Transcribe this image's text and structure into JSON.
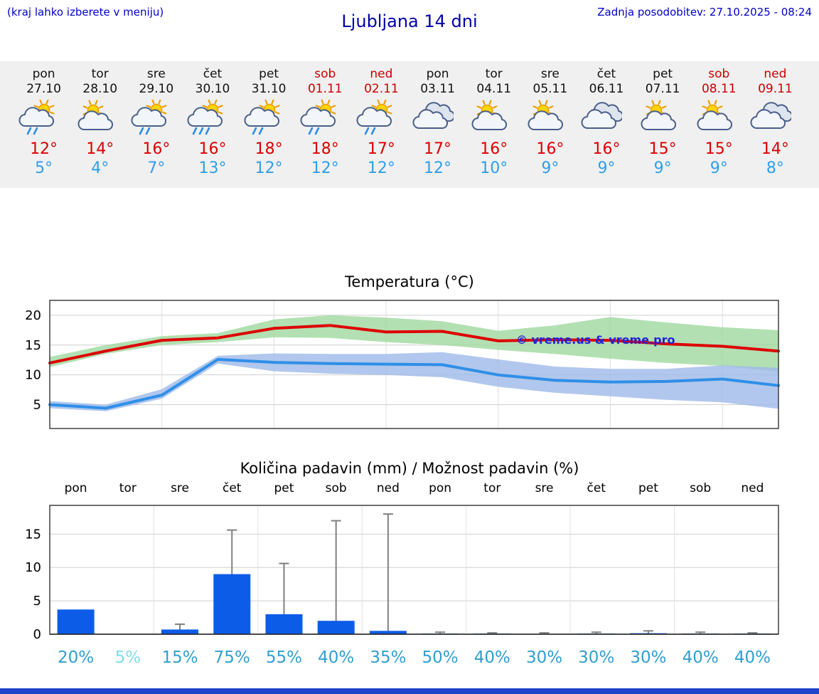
{
  "header": {
    "hint": "(kraj lahko izberete v meniju)",
    "title": "Ljubljana 14 dni",
    "updated": "Zadnja posodobitev: 27.10.2025 - 08:24"
  },
  "colors": {
    "accent_blue": "#0000aa",
    "temp_max": "#dd0000",
    "temp_min": "#2f9fe8",
    "bar_blue": "#0c5ce8",
    "percent": "#2f9fd0",
    "percent_muted": "#7fdde8",
    "strip_bg": "#f0f0f0"
  },
  "forecast": {
    "days": [
      {
        "name": "pon",
        "date": "27.10",
        "weekend": false,
        "icon": "sun-cloud-rain",
        "tmax": "12°",
        "tmin": "5°"
      },
      {
        "name": "tor",
        "date": "28.10",
        "weekend": false,
        "icon": "sun-cloud",
        "tmax": "14°",
        "tmin": "4°"
      },
      {
        "name": "sre",
        "date": "29.10",
        "weekend": false,
        "icon": "sun-cloud-rain",
        "tmax": "16°",
        "tmin": "7°"
      },
      {
        "name": "čet",
        "date": "30.10",
        "weekend": false,
        "icon": "sun-cloud-heavy-rain",
        "tmax": "16°",
        "tmin": "13°"
      },
      {
        "name": "pet",
        "date": "31.10",
        "weekend": false,
        "icon": "sun-cloud-rain",
        "tmax": "18°",
        "tmin": "12°"
      },
      {
        "name": "sob",
        "date": "01.11",
        "weekend": true,
        "icon": "sun-cloud-rain",
        "tmax": "18°",
        "tmin": "12°"
      },
      {
        "name": "ned",
        "date": "02.11",
        "weekend": true,
        "icon": "sun-cloud-rain",
        "tmax": "17°",
        "tmin": "12°"
      },
      {
        "name": "pon",
        "date": "03.11",
        "weekend": false,
        "icon": "cloudy",
        "tmax": "17°",
        "tmin": "12°"
      },
      {
        "name": "tor",
        "date": "04.11",
        "weekend": false,
        "icon": "sun-cloud",
        "tmax": "16°",
        "tmin": "10°"
      },
      {
        "name": "sre",
        "date": "05.11",
        "weekend": false,
        "icon": "sun-cloud",
        "tmax": "16°",
        "tmin": "9°"
      },
      {
        "name": "čet",
        "date": "06.11",
        "weekend": false,
        "icon": "cloudy",
        "tmax": "16°",
        "tmin": "9°"
      },
      {
        "name": "pet",
        "date": "07.11",
        "weekend": false,
        "icon": "sun-cloud",
        "tmax": "15°",
        "tmin": "9°"
      },
      {
        "name": "sob",
        "date": "08.11",
        "weekend": true,
        "icon": "sun-cloud",
        "tmax": "15°",
        "tmin": "9°"
      },
      {
        "name": "ned",
        "date": "09.11",
        "weekend": true,
        "icon": "cloudy",
        "tmax": "14°",
        "tmin": "8°"
      }
    ]
  },
  "chart_data": [
    {
      "type": "line",
      "title": "Temperatura (°C)",
      "x": [
        "pon",
        "tor",
        "sre",
        "čet",
        "pet",
        "sob",
        "ned",
        "pon",
        "tor",
        "sre",
        "čet",
        "pet",
        "sob",
        "ned"
      ],
      "ylim": [
        1,
        22.5
      ],
      "yticks": [
        5,
        10,
        15,
        20
      ],
      "grid": true,
      "watermark": "© vreme.us & vreme.pro",
      "series": [
        {
          "name": "max temperature",
          "color": "#dd0000",
          "band_color": "#9fd89f",
          "values": [
            12,
            14,
            15.8,
            16.2,
            17.8,
            18.3,
            17.2,
            17.3,
            15.7,
            15.9,
            15.8,
            15.2,
            14.8,
            14
          ],
          "band_upper": [
            13,
            15,
            16.5,
            17,
            19.3,
            20,
            19.6,
            19,
            17.4,
            18.3,
            19.7,
            18.8,
            18,
            17.5
          ],
          "band_lower": [
            11.3,
            13.5,
            15,
            15.5,
            16.3,
            16.2,
            15.5,
            15,
            14.2,
            13.5,
            12.7,
            12,
            11.5,
            10.5
          ]
        },
        {
          "name": "min temperature",
          "color": "#2f8fe8",
          "band_color": "#9fb9e8",
          "values": [
            5,
            4.4,
            6.6,
            12.6,
            12.1,
            11.9,
            11.8,
            11.7,
            10,
            9.1,
            8.8,
            8.9,
            9.3,
            8.2
          ],
          "band_upper": [
            5.6,
            5,
            7.6,
            13.2,
            13.6,
            13.5,
            13.5,
            13.8,
            12.6,
            11.4,
            11,
            11,
            11.6,
            11.2
          ],
          "band_lower": [
            4.4,
            3.9,
            6,
            11.9,
            10.6,
            10.2,
            10,
            9.6,
            8,
            7,
            6.4,
            5.8,
            5.4,
            4.3
          ]
        }
      ]
    },
    {
      "type": "bar",
      "title": "Količina padavin (mm) / Možnost padavin (%)",
      "categories": [
        "pon",
        "tor",
        "sre",
        "čet",
        "pet",
        "sob",
        "ned",
        "pon",
        "tor",
        "sre",
        "čet",
        "pet",
        "sob",
        "ned"
      ],
      "values": [
        3.7,
        0,
        0.7,
        9,
        3,
        2,
        0.5,
        0.1,
        0.1,
        0.05,
        0.1,
        0.15,
        0.1,
        0.1
      ],
      "whisker_max": [
        2.3,
        0,
        1.5,
        15.6,
        10.6,
        17,
        18,
        0.3,
        0.2,
        0.2,
        0.3,
        0.5,
        0.3,
        0.2
      ],
      "whisker_min": [
        0,
        0,
        0,
        1.2,
        0,
        0,
        0,
        0,
        0,
        0,
        0,
        0,
        0,
        0
      ],
      "ylim": [
        0,
        19.3
      ],
      "yticks": [
        0,
        5,
        10,
        15
      ],
      "grid": true,
      "percent_labels": [
        "20%",
        "5%",
        "15%",
        "75%",
        "55%",
        "40%",
        "35%",
        "50%",
        "40%",
        "30%",
        "30%",
        "30%",
        "40%",
        "40%"
      ],
      "percent_muted": [
        false,
        true,
        false,
        false,
        false,
        false,
        false,
        false,
        false,
        false,
        false,
        false,
        false,
        false
      ]
    }
  ]
}
